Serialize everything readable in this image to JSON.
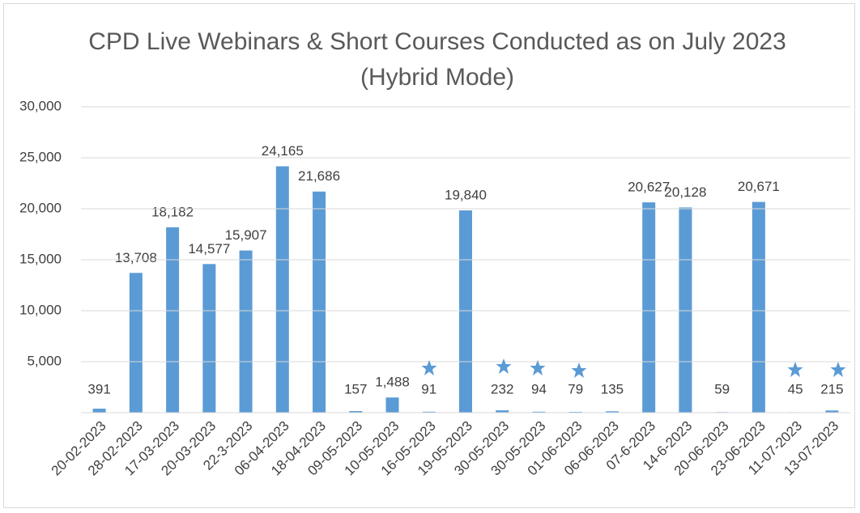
{
  "chart_data": {
    "type": "bar",
    "title": "CPD Live Webinars & Short Courses Conducted as on July 2023 (Hybrid Mode)",
    "categories": [
      "20-02-2023",
      "28-02-2023",
      "17-03-2023",
      "20-03-2023",
      "22-3-2023",
      "06-04-2023",
      "18-04-2023",
      "09-05-2023",
      "10-05-2023",
      "16-05-2023",
      "19-05-2023",
      "30-05-2023",
      "30-05-2023",
      "01-06-2023",
      "06-06-2023",
      "07-6-2023",
      "14-6-2023",
      "20-06-2023",
      "23-06-2023",
      "11-07-2023",
      "13-07-2023"
    ],
    "values": [
      391,
      13708,
      18182,
      14577,
      15907,
      24165,
      21686,
      157,
      1488,
      91,
      19840,
      232,
      94,
      79,
      135,
      20627,
      20128,
      59,
      20671,
      45,
      215
    ],
    "value_labels": [
      "391",
      "13,708",
      "18,182",
      "14,577",
      "15,907",
      "24,165",
      "21,686",
      "157",
      "1,488",
      "91",
      "19,840",
      "232",
      "94",
      "79",
      "135",
      "20,627",
      "20,128",
      "59",
      "20,671",
      "45",
      "215"
    ],
    "color": "#5b9bd5",
    "ylim": [
      0,
      30000
    ],
    "yticks": [
      {
        "value": 5000,
        "label": "5,000"
      },
      {
        "value": 10000,
        "label": "10,000"
      },
      {
        "value": 15000,
        "label": "15,000"
      },
      {
        "value": 20000,
        "label": "20,000"
      },
      {
        "value": 25000,
        "label": "25,000"
      },
      {
        "value": 30000,
        "label": "30,000"
      }
    ],
    "grid": true
  }
}
